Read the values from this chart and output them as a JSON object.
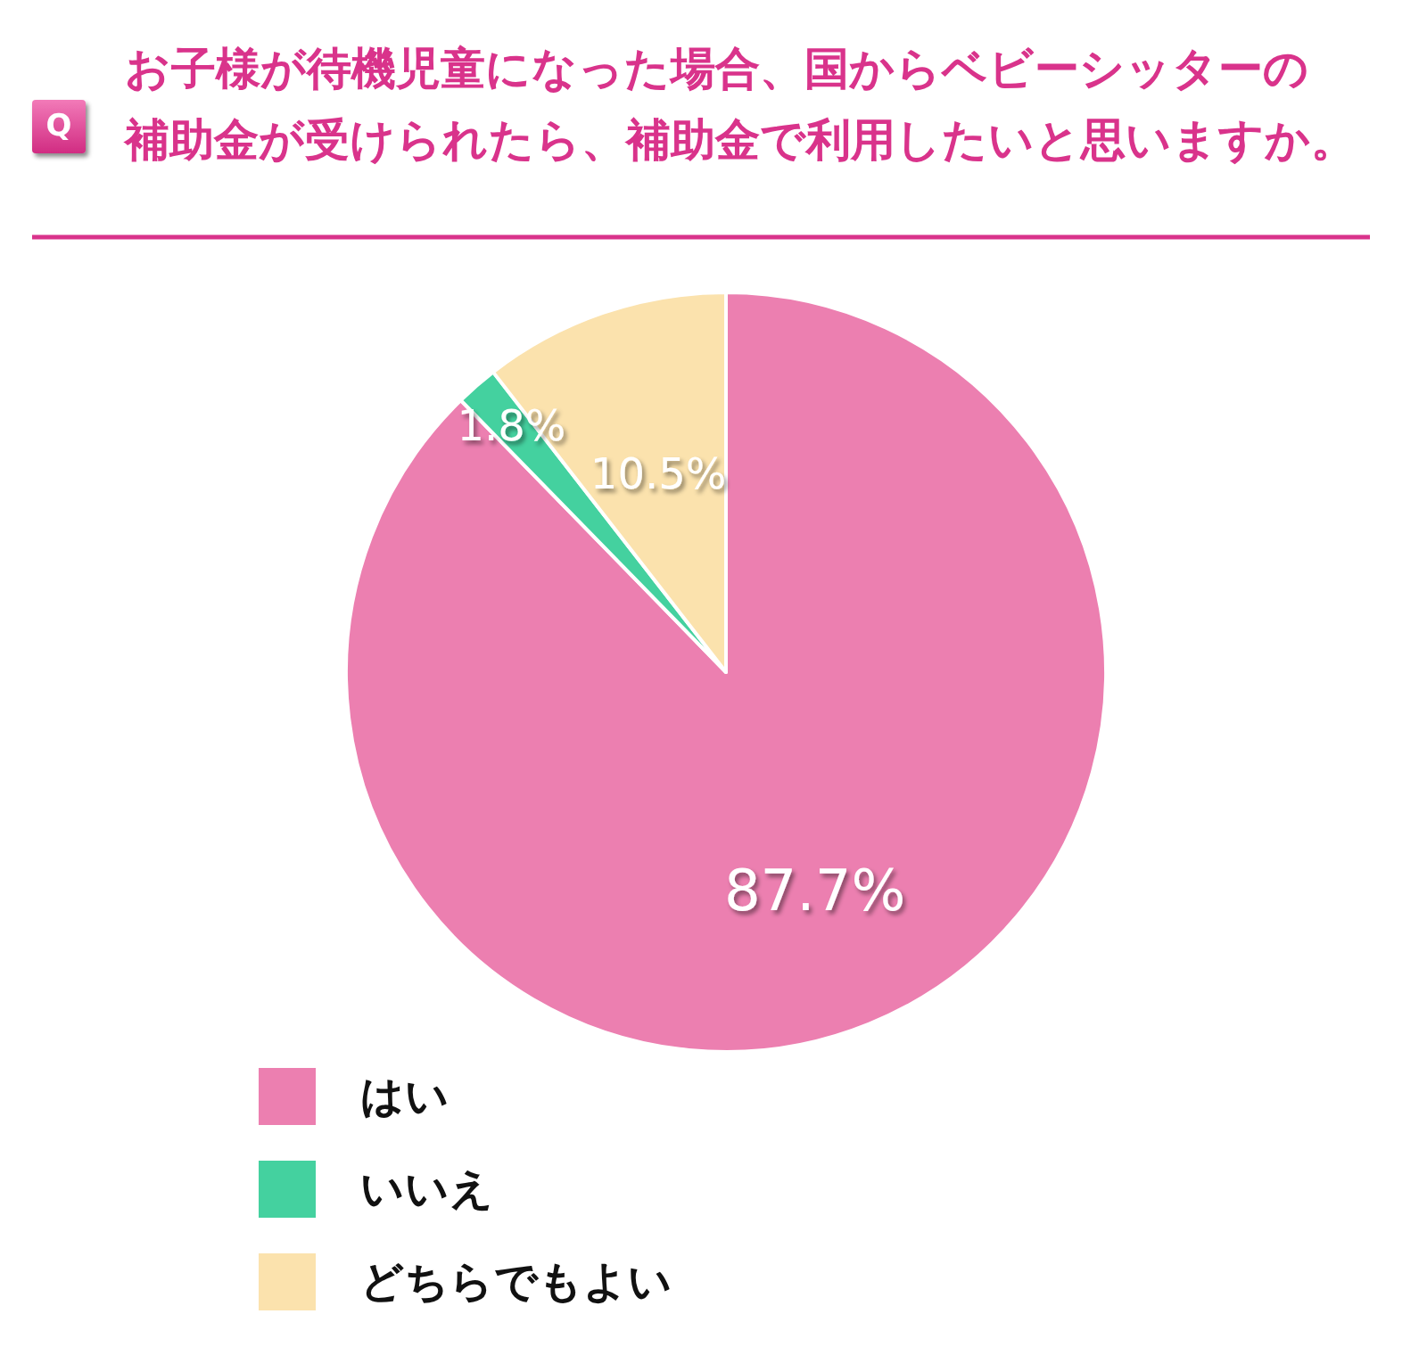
{
  "chart_data": {
    "type": "pie",
    "title": "お子様が待機児童になった場合、国からベビーシッターの補助金が受けられたら、補助金で利用したいと思いますか。",
    "categories": [
      "はい",
      "いいえ",
      "どちらでもよい"
    ],
    "values": [
      87.7,
      1.8,
      10.5
    ],
    "colors": [
      "#ec7fb0",
      "#44d19f",
      "#fbe2ad"
    ],
    "value_labels": [
      "87.7%",
      "1.8%",
      "10.5%"
    ],
    "legend": "bottom left",
    "annotations": [
      "Q"
    ]
  }
}
